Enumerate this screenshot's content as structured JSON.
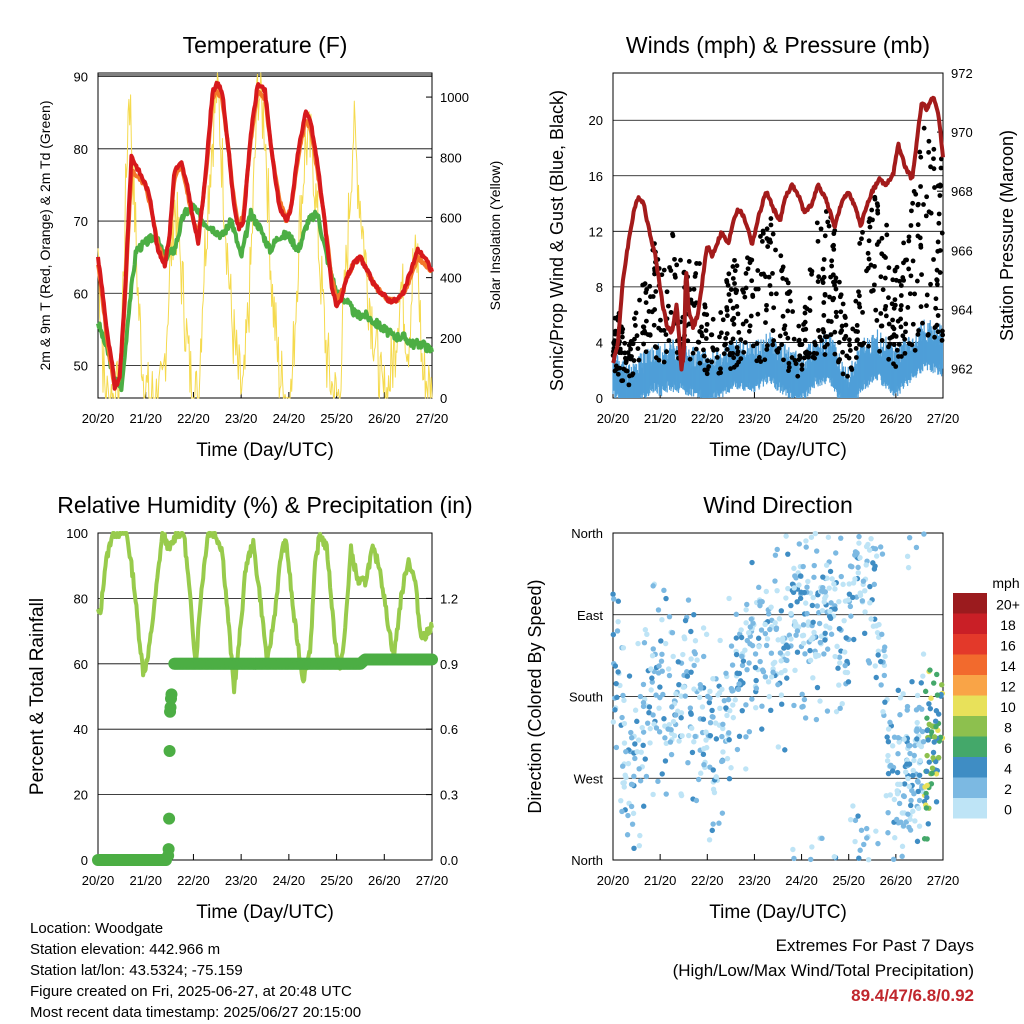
{
  "chart_data": [
    {
      "type": "line",
      "title": "Temperature (F)",
      "xlabel": "Time (Day/UTC)",
      "ylabel": "2m & 9m T (Red, Orange) & 2m Td (Green)",
      "y2label": "Solar Insolation (Yellow)",
      "x_ticks": [
        "20/20",
        "21/20",
        "22/20",
        "23/20",
        "24/20",
        "25/20",
        "26/20",
        "27/20"
      ],
      "y_ticks": [
        50,
        60,
        70,
        80,
        90
      ],
      "y2_ticks": [
        0,
        200,
        400,
        600,
        800,
        1000
      ],
      "ylim": [
        45.5,
        90.5
      ],
      "y2lim": [
        0,
        1080
      ],
      "grid": true,
      "colors": {
        "t2m": "#d7191c",
        "t9m": "#f4772a",
        "td": "#4cae44",
        "solar": "#f5da4e"
      },
      "series": [
        {
          "name": "2m T",
          "x": [
            0,
            0.1,
            0.2,
            0.3,
            0.35,
            0.45,
            0.55,
            0.7,
            0.85,
            1.0,
            1.1,
            1.25,
            1.4,
            1.5,
            1.6,
            1.75,
            1.9,
            2.0,
            2.1,
            2.2,
            2.3,
            2.4,
            2.5,
            2.6,
            2.75,
            2.85,
            2.95,
            3.05,
            3.2,
            3.35,
            3.5,
            3.65,
            3.8,
            3.95,
            4.05,
            4.2,
            4.35,
            4.45,
            4.6,
            4.75,
            4.9,
            5.0,
            5.1,
            5.2,
            5.35,
            5.5,
            5.65,
            5.8,
            5.95,
            6.1,
            6.25,
            6.4,
            6.55,
            6.7,
            6.85,
            7.0
          ],
          "values": [
            65,
            60,
            54,
            50,
            47,
            48,
            58,
            79,
            77,
            75,
            73,
            66,
            64,
            68,
            77,
            78,
            74,
            70,
            67,
            73,
            80,
            88,
            89,
            88,
            79,
            72,
            69,
            70,
            82,
            89,
            88,
            79,
            72,
            70,
            72,
            80,
            85,
            84,
            78,
            70,
            61,
            58,
            59,
            62,
            64,
            65,
            63,
            61,
            60,
            59,
            59,
            60,
            63,
            66,
            65,
            63
          ]
        },
        {
          "name": "9m T",
          "x": [
            0,
            0.1,
            0.2,
            0.3,
            0.35,
            0.45,
            0.55,
            0.7,
            0.85,
            1.0,
            1.1,
            1.25,
            1.4,
            1.5,
            1.6,
            1.75,
            1.9,
            2.0,
            2.1,
            2.2,
            2.3,
            2.4,
            2.5,
            2.6,
            2.75,
            2.85,
            2.95,
            3.05,
            3.2,
            3.35,
            3.5,
            3.65,
            3.8,
            3.95,
            4.05,
            4.2,
            4.35,
            4.45,
            4.6,
            4.75,
            4.9,
            5.0,
            5.1,
            5.2,
            5.35,
            5.5,
            5.65,
            5.8,
            5.95,
            6.1,
            6.25,
            6.4,
            6.55,
            6.7,
            6.85,
            7.0
          ],
          "values": [
            64,
            59,
            53,
            49,
            47,
            48,
            57,
            77,
            76,
            75,
            72,
            67,
            64,
            68,
            76,
            78,
            73,
            70,
            68,
            73,
            79,
            87,
            88,
            87,
            79,
            73,
            69,
            71,
            81,
            88,
            87,
            79,
            73,
            70,
            72,
            79,
            84,
            83,
            77,
            70,
            62,
            59,
            60,
            62,
            64,
            65,
            63,
            61,
            60,
            59,
            59,
            60,
            62,
            65,
            64,
            63
          ]
        },
        {
          "name": "2m Td",
          "x": [
            0,
            0.2,
            0.35,
            0.5,
            0.65,
            0.8,
            1.0,
            1.2,
            1.4,
            1.6,
            1.8,
            2.0,
            2.2,
            2.4,
            2.6,
            2.8,
            3.0,
            3.2,
            3.4,
            3.6,
            3.8,
            4.0,
            4.2,
            4.4,
            4.6,
            4.8,
            5.0,
            5.2,
            5.4,
            5.6,
            5.8,
            6.0,
            6.2,
            6.4,
            6.6,
            6.8,
            7.0
          ],
          "values": [
            56,
            52,
            48,
            47,
            58,
            66,
            67,
            68,
            65,
            66,
            71,
            72,
            70,
            69,
            68,
            70,
            65,
            71,
            69,
            66,
            68,
            68,
            66,
            70,
            71,
            65,
            60,
            59,
            57,
            57,
            56,
            55,
            54,
            54,
            53,
            53,
            52
          ]
        },
        {
          "name": "Solar",
          "axis": "y2",
          "x": [
            0,
            0.08,
            0.15,
            0.3,
            0.45,
            0.55,
            0.65,
            0.75,
            0.85,
            0.95,
            1.05,
            1.2,
            1.35,
            1.5,
            1.6,
            1.7,
            1.8,
            1.9,
            2.0,
            2.1,
            2.2,
            2.35,
            2.5,
            2.65,
            2.8,
            2.95,
            3.05,
            3.2,
            3.35,
            3.5,
            3.65,
            3.8,
            3.95,
            4.05,
            4.2,
            4.35,
            4.5,
            4.65,
            4.8,
            4.95,
            5.05,
            5.2,
            5.35,
            5.5,
            5.65,
            5.8,
            5.95,
            6.05,
            6.2,
            6.35,
            6.5,
            6.6,
            6.7,
            6.8,
            6.9,
            7.0
          ],
          "values": [
            500,
            200,
            0,
            0,
            0,
            500,
            1050,
            700,
            300,
            80,
            0,
            0,
            0,
            400,
            650,
            500,
            320,
            120,
            0,
            0,
            380,
            780,
            1050,
            650,
            260,
            60,
            0,
            420,
            1050,
            900,
            350,
            80,
            0,
            0,
            500,
            850,
            820,
            450,
            120,
            0,
            0,
            420,
            900,
            650,
            380,
            200,
            0,
            0,
            150,
            380,
            180,
            420,
            460,
            80,
            50,
            0
          ]
        }
      ]
    },
    {
      "type": "line",
      "title": "Winds (mph) & Pressure (mb)",
      "xlabel": "Time (Day/UTC)",
      "ylabel": "Sonic/Prop Wind & Gust (Blue, Black)",
      "y2label": "Station Pressure (Maroon)",
      "x_ticks": [
        "20/20",
        "21/20",
        "22/20",
        "23/20",
        "24/20",
        "25/20",
        "26/20",
        "27/20"
      ],
      "y_ticks": [
        0,
        4,
        8,
        12,
        16,
        20
      ],
      "y2_ticks": [
        962,
        964,
        966,
        968,
        970,
        972
      ],
      "ylim": [
        0,
        23.4
      ],
      "y2lim": [
        961.0,
        972.0
      ],
      "grid": true,
      "colors": {
        "wind": "#4f9fd8",
        "gust": "#000000",
        "pressure": "#a31b1b"
      },
      "series": [
        {
          "name": "Pressure",
          "axis": "y2",
          "x": [
            0,
            0.1,
            0.2,
            0.3,
            0.45,
            0.55,
            0.65,
            0.75,
            0.9,
            1.05,
            1.15,
            1.25,
            1.35,
            1.45,
            1.5,
            1.55,
            1.6,
            1.7,
            1.8,
            1.9,
            2.0,
            2.1,
            2.3,
            2.45,
            2.55,
            2.65,
            2.75,
            2.85,
            2.95,
            3.1,
            3.25,
            3.4,
            3.55,
            3.65,
            3.8,
            3.95,
            4.05,
            4.2,
            4.35,
            4.5,
            4.6,
            4.7,
            4.85,
            5.0,
            5.15,
            5.25,
            5.4,
            5.5,
            5.65,
            5.8,
            5.95,
            6.05,
            6.2,
            6.35,
            6.45,
            6.55,
            6.65,
            6.8,
            6.9,
            7.0
          ],
          "values": [
            962.2,
            962.8,
            964.8,
            966.0,
            967.4,
            967.8,
            967.6,
            966.8,
            965.8,
            964.2,
            963.4,
            963.2,
            964.2,
            962.0,
            962.4,
            965.5,
            964.0,
            963.4,
            963.8,
            965.0,
            966.2,
            965.8,
            966.6,
            966.2,
            967.0,
            967.4,
            967.2,
            966.8,
            966.2,
            967.2,
            968.0,
            967.4,
            967.0,
            967.8,
            968.2,
            967.8,
            967.3,
            967.5,
            968.2,
            967.8,
            967.3,
            966.8,
            967.6,
            968.0,
            967.4,
            966.8,
            967.6,
            968.0,
            968.4,
            968.2,
            968.6,
            969.6,
            968.8,
            968.4,
            969.8,
            971.0,
            970.8,
            971.2,
            970.6,
            969.2
          ]
        },
        {
          "name": "Wind",
          "type": "band",
          "x": [
            0,
            0.3,
            0.6,
            0.9,
            1.0,
            1.2,
            1.5,
            1.8,
            2.0,
            2.3,
            2.6,
            3.0,
            3.3,
            3.6,
            4.0,
            4.3,
            4.6,
            5.0,
            5.3,
            5.6,
            6.0,
            6.3,
            6.6,
            7.0
          ],
          "values": [
            2.0,
            0.8,
            1.5,
            2.5,
            2.0,
            2.5,
            2.2,
            2.0,
            1.5,
            2.0,
            2.6,
            2.4,
            3.0,
            2.2,
            1.5,
            2.8,
            3.0,
            0.5,
            2.5,
            3.2,
            2.0,
            3.0,
            4.0,
            3.5
          ]
        },
        {
          "name": "Gust",
          "type": "scatter",
          "x": [
            0,
            0.3,
            0.6,
            0.9,
            1.0,
            1.2,
            1.5,
            1.8,
            2.0,
            2.3,
            2.6,
            3.0,
            3.3,
            3.6,
            4.0,
            4.3,
            4.6,
            5.0,
            5.3,
            5.6,
            6.0,
            6.3,
            6.6,
            7.0
          ],
          "values": [
            5.5,
            2.0,
            5.0,
            7.0,
            6.5,
            8.0,
            6.0,
            6.5,
            3.5,
            4.5,
            6.5,
            6.0,
            8.5,
            6.0,
            3.0,
            7.5,
            9.0,
            2.5,
            8.0,
            9.5,
            6.0,
            8.5,
            12.0,
            11.0
          ]
        }
      ]
    },
    {
      "type": "line",
      "title": "Relative Humidity (%) & Precipitation (in)",
      "xlabel": "Time (Day/UTC)",
      "ylabel": "Percent & Total Rainfall",
      "x_ticks": [
        "20/20",
        "21/20",
        "22/20",
        "23/20",
        "24/20",
        "25/20",
        "26/20",
        "27/20"
      ],
      "y_ticks": [
        0,
        20,
        40,
        60,
        80,
        100
      ],
      "y2_ticks": [
        "0.0",
        "0.3",
        "0.6",
        "0.9",
        "1.2"
      ],
      "ylim": [
        0,
        100
      ],
      "y2lim": [
        0,
        1.5
      ],
      "grid": true,
      "colors": {
        "rh": "#98cb4c",
        "precip": "#4cae44"
      },
      "series": [
        {
          "name": "RH",
          "x": [
            0,
            0.05,
            0.15,
            0.3,
            0.45,
            0.6,
            0.75,
            0.85,
            0.95,
            1.05,
            1.2,
            1.35,
            1.5,
            1.65,
            1.8,
            1.9,
            2.05,
            2.15,
            2.3,
            2.45,
            2.6,
            2.75,
            2.85,
            2.95,
            3.1,
            3.25,
            3.4,
            3.55,
            3.7,
            3.85,
            3.95,
            4.1,
            4.3,
            4.45,
            4.55,
            4.65,
            4.8,
            4.95,
            5.05,
            5.15,
            5.3,
            5.45,
            5.6,
            5.75,
            5.9,
            6.05,
            6.2,
            6.35,
            6.5,
            6.65,
            6.75,
            6.85,
            7.0
          ],
          "values": [
            76,
            75,
            90,
            100,
            100,
            100,
            85,
            70,
            57,
            62,
            80,
            100,
            95,
            100,
            100,
            85,
            60,
            80,
            100,
            100,
            95,
            70,
            52,
            65,
            90,
            97,
            80,
            60,
            75,
            95,
            97,
            75,
            55,
            65,
            90,
            100,
            95,
            70,
            58,
            65,
            95,
            85,
            85,
            95,
            90,
            75,
            62,
            80,
            92,
            85,
            70,
            68,
            72
          ]
        },
        {
          "name": "Precip",
          "axis": "y2",
          "type": "scatter",
          "x": [
            0,
            0.5,
            1.0,
            1.45,
            1.48,
            1.5,
            1.52,
            1.55,
            1.6,
            2.0,
            3.0,
            4.0,
            5.0,
            5.5,
            5.55,
            5.6,
            6.0,
            7.0
          ],
          "values": [
            0.0,
            0.0,
            0.0,
            0.0,
            0.02,
            0.2,
            0.5,
            0.7,
            0.9,
            0.9,
            0.9,
            0.9,
            0.9,
            0.9,
            0.91,
            0.92,
            0.92,
            0.92
          ]
        }
      ]
    },
    {
      "type": "scatter",
      "title": "Wind Direction",
      "xlabel": "Time (Day/UTC)",
      "ylabel": "Direction (Colored By Speed)",
      "x_ticks": [
        "20/20",
        "21/20",
        "22/20",
        "23/20",
        "24/20",
        "25/20",
        "26/20",
        "27/20"
      ],
      "y_ticks": [
        "North",
        "East",
        "South",
        "West",
        "North"
      ],
      "ylim": [
        0,
        360
      ],
      "grid": true,
      "legend": {
        "title": "mph",
        "labels": [
          "20+",
          "18",
          "16",
          "14",
          "12",
          "10",
          "8",
          "6",
          "4",
          "2",
          "0"
        ],
        "colors": [
          "#9b1b1e",
          "#c91f26",
          "#e3392a",
          "#f26a2d",
          "#f9a447",
          "#e8e15a",
          "#8dc04e",
          "#44a86a",
          "#3f8dc4",
          "#7cb9e2",
          "#bee4f6"
        ],
        "placement": "right"
      },
      "series": [
        {
          "name": "Direction clusters",
          "x": [
            0.1,
            0.3,
            0.5,
            0.8,
            1.0,
            1.3,
            1.6,
            1.8,
            2.2,
            2.5,
            2.9,
            3.2,
            3.6,
            3.9,
            4.2,
            4.6,
            4.9,
            5.1,
            5.3,
            5.6,
            5.9,
            6.1,
            6.3,
            6.6,
            6.9
          ],
          "values": [
            200,
            80,
            110,
            190,
            180,
            175,
            180,
            170,
            120,
            200,
            220,
            250,
            230,
            290,
            260,
            280,
            230,
            340,
            320,
            300,
            90,
            90,
            80,
            110,
            150
          ]
        }
      ]
    }
  ],
  "info": {
    "location": "Location: Woodgate",
    "elevation": "Station elevation: 442.966 m",
    "latlon": "Station lat/lon: 43.5324; -75.159",
    "created": "Figure created on Fri, 2025-06-27, at 20:48 UTC",
    "recent": "Most recent data timestamp: 2025/06/27 20:15:00"
  },
  "extremes": {
    "line1": "Extremes For Past 7 Days",
    "line2": "(High/Low/Max Wind/Total Precipitation)",
    "values": "89.4/47/6.8/0.92"
  }
}
